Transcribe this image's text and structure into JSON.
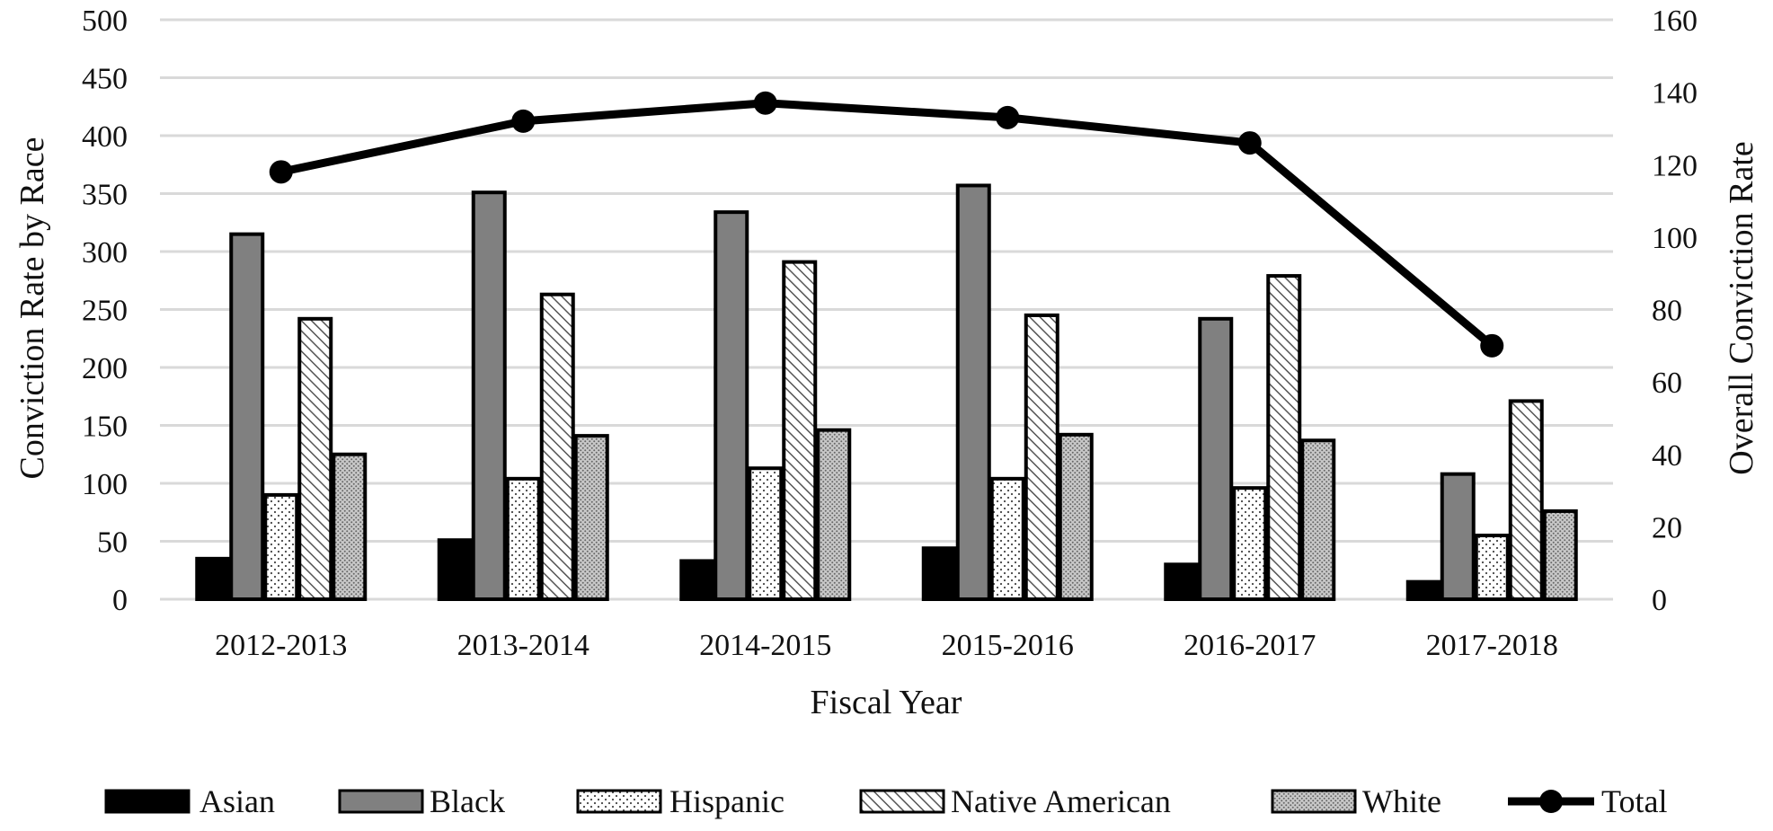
{
  "chart_data": {
    "type": "bar",
    "categories": [
      "2012-2013",
      "2013-2014",
      "2014-2015",
      "2015-2016",
      "2016-2017",
      "2017-2018"
    ],
    "xlabel": "Fiscal Year",
    "ylabel": "Conviction Rate by Race",
    "y2label": "Overall Conviction Rate",
    "ylim": [
      0,
      500
    ],
    "yticks": [
      0,
      50,
      100,
      150,
      200,
      250,
      300,
      350,
      400,
      450,
      500
    ],
    "y2lim": [
      0,
      160
    ],
    "y2ticks": [
      0,
      20,
      40,
      60,
      80,
      100,
      120,
      140,
      160
    ],
    "grid": true,
    "legend_position": "bottom",
    "series": [
      {
        "name": "Asian",
        "type": "bar",
        "pattern": "solid-black",
        "values": [
          35,
          51,
          33,
          44,
          30,
          15
        ]
      },
      {
        "name": "Black",
        "type": "bar",
        "pattern": "solid-gray",
        "values": [
          315,
          351,
          334,
          357,
          242,
          108
        ]
      },
      {
        "name": "Hispanic",
        "type": "bar",
        "pattern": "dots",
        "values": [
          90,
          104,
          113,
          104,
          96,
          55
        ]
      },
      {
        "name": "Native American",
        "type": "bar",
        "pattern": "diagonal",
        "values": [
          242,
          263,
          291,
          245,
          279,
          171
        ]
      },
      {
        "name": "White",
        "type": "bar",
        "pattern": "crosshatch",
        "values": [
          125,
          141,
          146,
          142,
          137,
          76
        ]
      },
      {
        "name": "Total",
        "type": "line",
        "axis": "right",
        "values": [
          118,
          132,
          137,
          133,
          126,
          70
        ]
      }
    ],
    "colors": {
      "black": "#000000",
      "gray": "#808080",
      "grid": "#d9d9d9",
      "white": "#ffffff"
    }
  }
}
